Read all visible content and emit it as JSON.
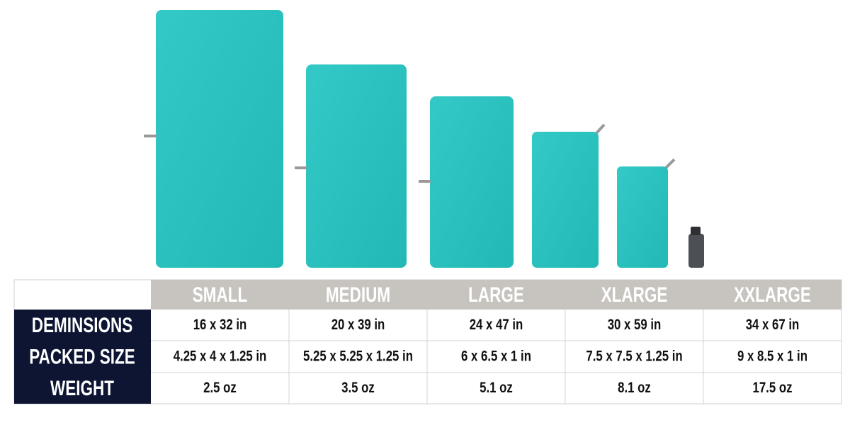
{
  "table": {
    "columns": [
      "SMALL",
      "MEDIUM",
      "LARGE",
      "XLARGE",
      "XXLARGE"
    ],
    "rows": [
      {
        "label": "DEMINSIONS",
        "cells": [
          "16 x 32 in",
          "20 x 39 in",
          "24 x 47 in",
          "30 x 59 in",
          "34 x 67 in"
        ]
      },
      {
        "label": "PACKED SIZE",
        "cells": [
          "4.25 x 4 x 1.25 in",
          "5.25 x 5.25 x 1.25 in",
          "6 x 6.5 x 1 in",
          "7.5 x 7.5 x 1.25 in",
          "9 x 8.5 x 1 in"
        ]
      },
      {
        "label": "WEIGHT",
        "cells": [
          "2.5 oz",
          "3.5 oz",
          "5.1 oz",
          "8.1 oz",
          "17.5 oz"
        ]
      }
    ]
  }
}
